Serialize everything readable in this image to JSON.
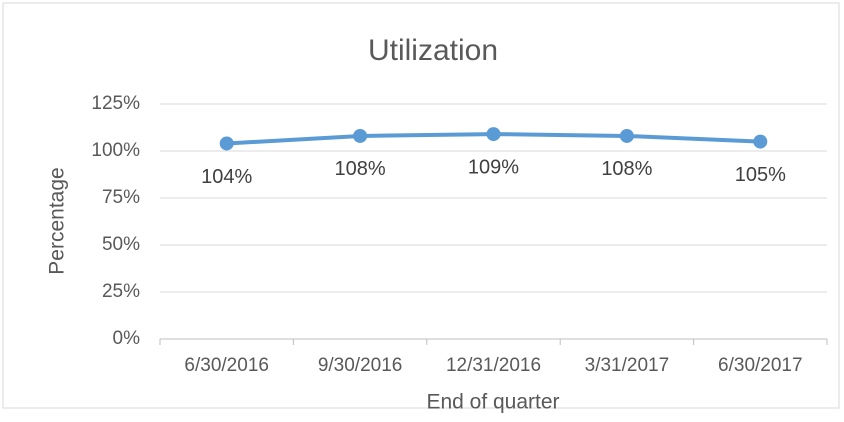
{
  "chart_data": {
    "type": "line",
    "title": "Utilization",
    "x_label": "End of quarter",
    "y_label": "Percentage",
    "categories": [
      "6/30/2016",
      "9/30/2016",
      "12/31/2016",
      "3/31/2017",
      "6/30/2017"
    ],
    "series": [
      {
        "name": "Utilization",
        "color": "#5b9bd5",
        "values": [
          104,
          108,
          109,
          108,
          105
        ],
        "value_labels": [
          "104%",
          "108%",
          "109%",
          "108%",
          "105%"
        ]
      }
    ],
    "ylim": [
      0,
      125
    ],
    "yticks": [
      {
        "value": 0,
        "label": "0%"
      },
      {
        "value": 25,
        "label": "25%"
      },
      {
        "value": 50,
        "label": "50%"
      },
      {
        "value": 75,
        "label": "75%"
      },
      {
        "value": 100,
        "label": "100%"
      },
      {
        "value": 125,
        "label": "125%"
      }
    ],
    "grid": true
  }
}
